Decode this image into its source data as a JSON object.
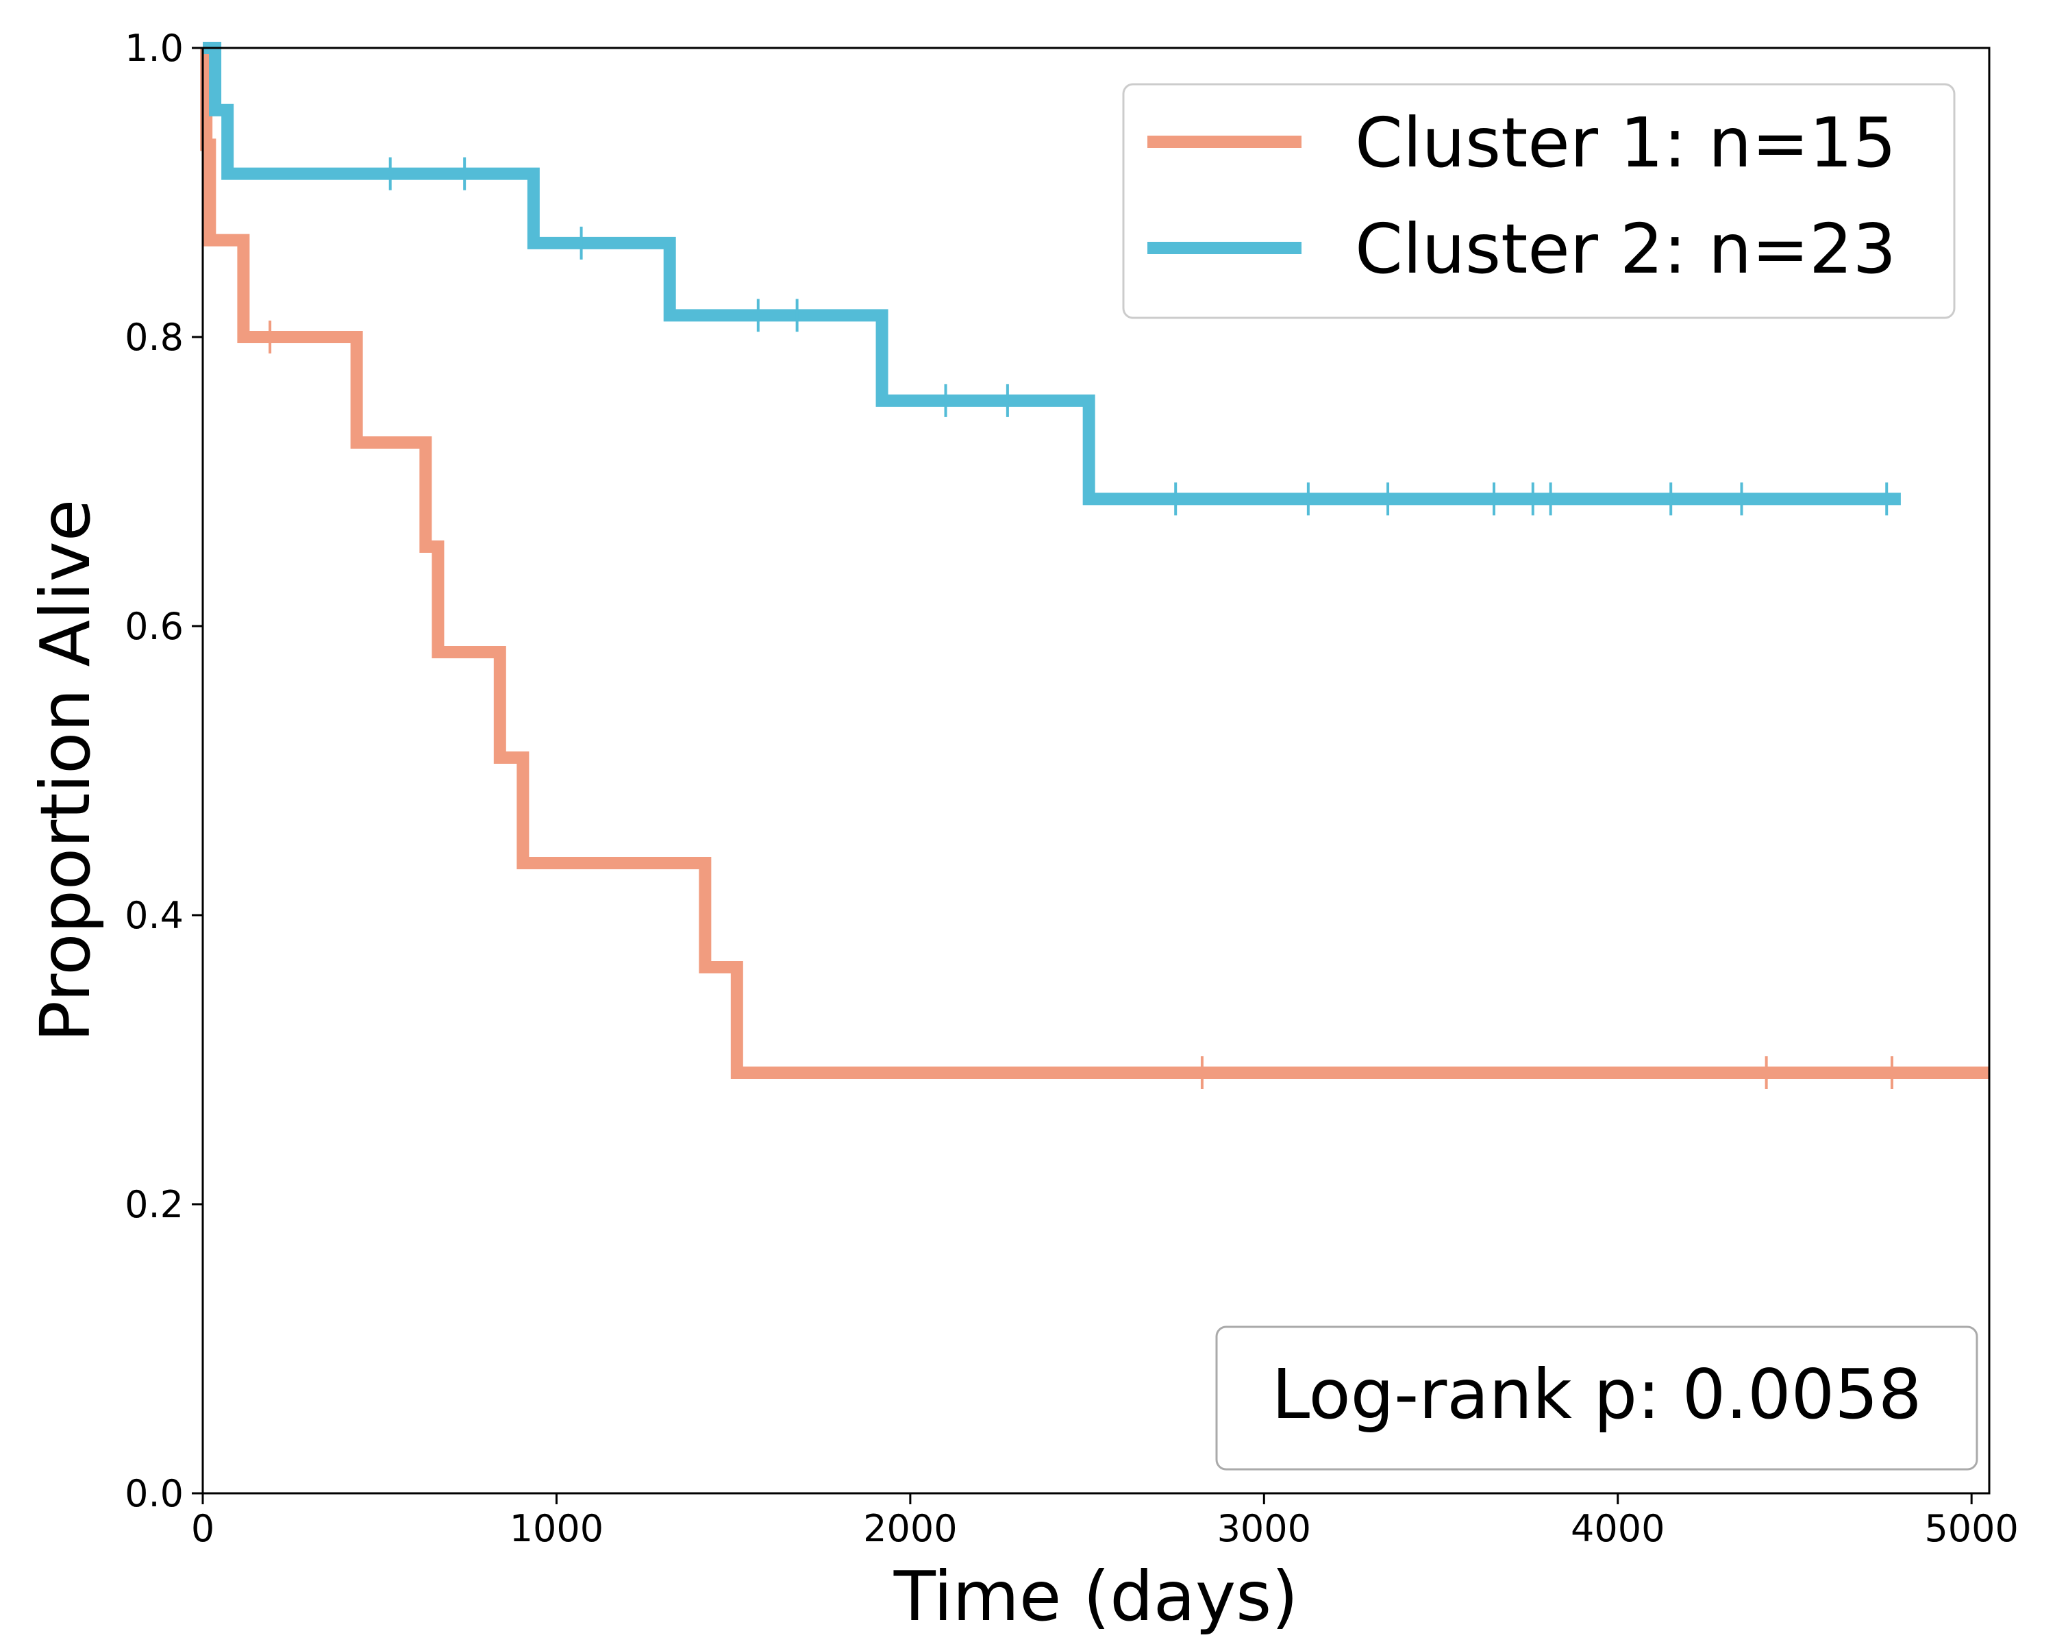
{
  "chart_data": {
    "type": "line",
    "step": true,
    "xlabel": "Time (days)",
    "ylabel": "Proportion Alive",
    "xlim": [
      0,
      5050
    ],
    "ylim": [
      0.0,
      1.0
    ],
    "xticks": [
      0,
      1000,
      2000,
      3000,
      4000,
      5000
    ],
    "yticks": [
      0.0,
      0.2,
      0.4,
      0.6,
      0.8,
      1.0
    ],
    "xtick_labels": [
      "0",
      "1000",
      "2000",
      "3000",
      "4000",
      "5000"
    ],
    "ytick_labels": [
      "0.0",
      "0.2",
      "0.4",
      "0.6",
      "0.8",
      "1.0"
    ],
    "grid": false,
    "legend_position": "top-right",
    "annotation": "Log-rank p: 0.0058",
    "series": [
      {
        "name": "Cluster 1: n=15",
        "color": "#f19c7f",
        "steps": [
          [
            0,
            1.0
          ],
          [
            10,
            0.933
          ],
          [
            20,
            0.867
          ],
          [
            115,
            0.8
          ],
          [
            435,
            0.727
          ],
          [
            630,
            0.655
          ],
          [
            665,
            0.582
          ],
          [
            840,
            0.509
          ],
          [
            905,
            0.436
          ],
          [
            1420,
            0.364
          ],
          [
            1510,
            0.291
          ]
        ],
        "end_x": 5050,
        "censored": [
          [
            190,
            0.8
          ],
          [
            2825,
            0.291
          ],
          [
            4420,
            0.291
          ],
          [
            4775,
            0.291
          ]
        ]
      },
      {
        "name": "Cluster 2: n=23",
        "color": "#53bcd7",
        "steps": [
          [
            0,
            1.0
          ],
          [
            35,
            0.957
          ],
          [
            70,
            0.913
          ],
          [
            935,
            0.865
          ],
          [
            1320,
            0.815
          ],
          [
            1920,
            0.756
          ],
          [
            2505,
            0.688
          ]
        ],
        "end_x": 4800,
        "censored": [
          [
            530,
            0.913
          ],
          [
            740,
            0.913
          ],
          [
            1070,
            0.865
          ],
          [
            1570,
            0.815
          ],
          [
            1680,
            0.815
          ],
          [
            2100,
            0.756
          ],
          [
            2275,
            0.756
          ],
          [
            2750,
            0.688
          ],
          [
            3125,
            0.688
          ],
          [
            3350,
            0.688
          ],
          [
            3650,
            0.688
          ],
          [
            3760,
            0.688
          ],
          [
            3810,
            0.688
          ],
          [
            4150,
            0.688
          ],
          [
            4350,
            0.688
          ],
          [
            4760,
            0.688
          ]
        ]
      }
    ]
  }
}
